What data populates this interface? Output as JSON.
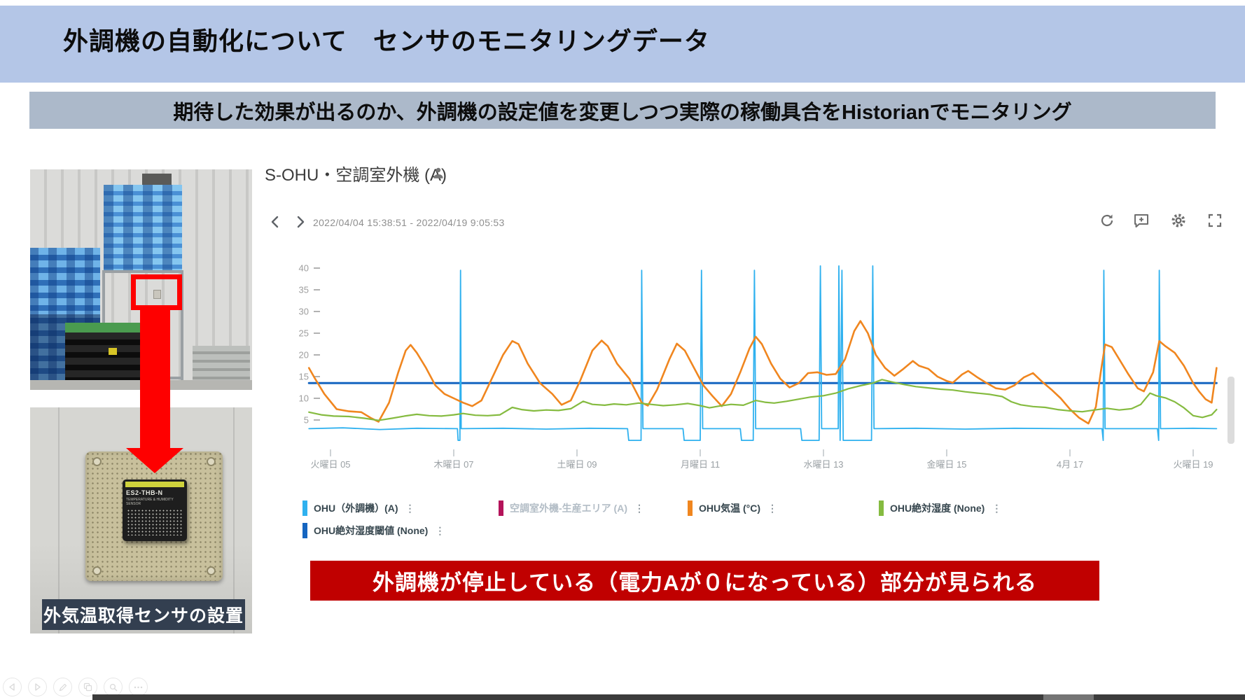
{
  "slide": {
    "title": "外調機の自動化について　センサのモニタリングデータ",
    "subtitle": "期待した効果が出るのか、外調機の設定値を変更しつつ実際の稼働具合をHistorianでモニタリング",
    "callout": "外調機が停止している（電力Aが０になっている）部分が見られる",
    "photo_caption": "外気温取得センサの設置",
    "sensor_model": "ES2-THB-N",
    "sensor_sub": "TEMPERATURE & HUMIDITY SENSOR"
  },
  "trend": {
    "title": "S-OHU・空調室外機 (A)",
    "date_range": "2022/04/04 15:38:51 - 2022/04/19 9:05:53",
    "legend_menu_glyph": "⋮"
  },
  "chart_data": {
    "type": "line",
    "title": "S-OHU・空調室外機 (A)",
    "x_axis": {
      "unit": "date (April 2022)",
      "range_days": [
        4.65,
        19.38
      ],
      "ticks": [
        {
          "day": 5,
          "label": "火曜日 05"
        },
        {
          "day": 7,
          "label": "木曜日 07"
        },
        {
          "day": 9,
          "label": "土曜日 09"
        },
        {
          "day": 11,
          "label": "月曜日 11"
        },
        {
          "day": 13,
          "label": "水曜日 13"
        },
        {
          "day": 15,
          "label": "金曜日 15"
        },
        {
          "day": 17,
          "label": "4月 17"
        },
        {
          "day": 19,
          "label": "火曜日 19"
        }
      ]
    },
    "y_axis": {
      "ticks": [
        5,
        10,
        15,
        20,
        25,
        30,
        35,
        40
      ],
      "lim": [
        0,
        43
      ]
    },
    "grid": false,
    "legend_position": "bottom",
    "series": [
      {
        "name": "OHU（外調機）(A)",
        "unit": "A",
        "color": "#2fb1ef",
        "visible": true,
        "points": [
          [
            4.65,
            3
          ],
          [
            5.2,
            3.2
          ],
          [
            5.8,
            2.8
          ],
          [
            6.4,
            3.1
          ],
          [
            7.06,
            3
          ],
          [
            7.07,
            0.3
          ],
          [
            7.1,
            0.3
          ],
          [
            7.11,
            39.5
          ],
          [
            7.12,
            3
          ],
          [
            7.8,
            3.1
          ],
          [
            8.5,
            2.9
          ],
          [
            9.2,
            3.1
          ],
          [
            9.82,
            3
          ],
          [
            9.84,
            0.3
          ],
          [
            10.04,
            0.3
          ],
          [
            10.05,
            39.5
          ],
          [
            10.07,
            3
          ],
          [
            10.72,
            3
          ],
          [
            10.74,
            0.3
          ],
          [
            11.0,
            0.3
          ],
          [
            11.02,
            39.5
          ],
          [
            11.04,
            3
          ],
          [
            11.65,
            3
          ],
          [
            11.67,
            0.3
          ],
          [
            11.86,
            0.3
          ],
          [
            11.88,
            39.5
          ],
          [
            11.9,
            3
          ],
          [
            12.63,
            3
          ],
          [
            12.65,
            0.3
          ],
          [
            12.93,
            0.3
          ],
          [
            12.95,
            40.5
          ],
          [
            12.97,
            3
          ],
          [
            13.24,
            3
          ],
          [
            13.25,
            40.5
          ],
          [
            13.27,
            0.3
          ],
          [
            13.3,
            39.5
          ],
          [
            13.32,
            0.3
          ],
          [
            13.78,
            0.3
          ],
          [
            13.8,
            40.5
          ],
          [
            13.82,
            3
          ],
          [
            14.5,
            3.1
          ],
          [
            15.3,
            2.9
          ],
          [
            16.1,
            3.1
          ],
          [
            16.9,
            3
          ],
          [
            17.52,
            3
          ],
          [
            17.54,
            0.3
          ],
          [
            17.55,
            39.5
          ],
          [
            17.57,
            3
          ],
          [
            18.1,
            3
          ],
          [
            18.42,
            3
          ],
          [
            18.44,
            0.3
          ],
          [
            18.45,
            39.5
          ],
          [
            18.47,
            3
          ],
          [
            19.0,
            3.1
          ],
          [
            19.38,
            3
          ]
        ]
      },
      {
        "name": "空調室外機-生産エリア (A)",
        "unit": "A",
        "color": "#b4135a",
        "visible": false,
        "points": []
      },
      {
        "name": "OHU気温 (°C)",
        "unit": "°C",
        "color": "#f0861f",
        "visible": true,
        "points": [
          [
            4.65,
            17
          ],
          [
            4.75,
            14.5
          ],
          [
            4.9,
            11
          ],
          [
            5.1,
            7.5
          ],
          [
            5.3,
            7
          ],
          [
            5.5,
            6.8
          ],
          [
            5.65,
            5.5
          ],
          [
            5.78,
            4.6
          ],
          [
            5.95,
            9
          ],
          [
            6.1,
            16
          ],
          [
            6.22,
            21
          ],
          [
            6.3,
            22.3
          ],
          [
            6.4,
            20.5
          ],
          [
            6.55,
            17
          ],
          [
            6.7,
            13
          ],
          [
            6.85,
            11
          ],
          [
            7.0,
            10
          ],
          [
            7.15,
            9
          ],
          [
            7.3,
            8.2
          ],
          [
            7.45,
            9.5
          ],
          [
            7.6,
            14
          ],
          [
            7.8,
            20
          ],
          [
            7.95,
            23.2
          ],
          [
            8.05,
            22.5
          ],
          [
            8.2,
            18
          ],
          [
            8.4,
            13.5
          ],
          [
            8.6,
            11
          ],
          [
            8.75,
            8.5
          ],
          [
            8.9,
            9.5
          ],
          [
            9.05,
            14
          ],
          [
            9.25,
            21
          ],
          [
            9.4,
            23.3
          ],
          [
            9.5,
            22
          ],
          [
            9.65,
            18
          ],
          [
            9.85,
            14.5
          ],
          [
            10.05,
            9
          ],
          [
            10.15,
            8.3
          ],
          [
            10.3,
            12
          ],
          [
            10.5,
            19
          ],
          [
            10.62,
            22.6
          ],
          [
            10.75,
            21
          ],
          [
            10.9,
            17
          ],
          [
            11.05,
            13
          ],
          [
            11.2,
            10.5
          ],
          [
            11.35,
            8.2
          ],
          [
            11.5,
            11
          ],
          [
            11.65,
            16
          ],
          [
            11.8,
            21.5
          ],
          [
            11.9,
            24.2
          ],
          [
            12.0,
            22.5
          ],
          [
            12.15,
            18
          ],
          [
            12.3,
            14.5
          ],
          [
            12.45,
            12.5
          ],
          [
            12.6,
            13.5
          ],
          [
            12.75,
            15.8
          ],
          [
            12.9,
            16
          ],
          [
            13.05,
            15.4
          ],
          [
            13.2,
            15.6
          ],
          [
            13.35,
            19
          ],
          [
            13.5,
            25.5
          ],
          [
            13.6,
            27.8
          ],
          [
            13.72,
            25
          ],
          [
            13.85,
            20
          ],
          [
            14.0,
            17
          ],
          [
            14.15,
            15.2
          ],
          [
            14.3,
            16.8
          ],
          [
            14.45,
            18.6
          ],
          [
            14.55,
            17.5
          ],
          [
            14.7,
            16.8
          ],
          [
            14.85,
            15
          ],
          [
            15.0,
            14
          ],
          [
            15.1,
            13.6
          ],
          [
            15.25,
            15.5
          ],
          [
            15.35,
            16.3
          ],
          [
            15.5,
            14.8
          ],
          [
            15.65,
            13.5
          ],
          [
            15.8,
            12.3
          ],
          [
            15.95,
            12
          ],
          [
            16.1,
            13
          ],
          [
            16.25,
            14.8
          ],
          [
            16.4,
            15.8
          ],
          [
            16.55,
            13.8
          ],
          [
            16.7,
            12
          ],
          [
            16.85,
            10
          ],
          [
            17.0,
            7.5
          ],
          [
            17.15,
            5.5
          ],
          [
            17.3,
            4.2
          ],
          [
            17.42,
            8
          ],
          [
            17.5,
            16
          ],
          [
            17.57,
            22.4
          ],
          [
            17.68,
            21.8
          ],
          [
            17.8,
            19
          ],
          [
            17.95,
            15.5
          ],
          [
            18.1,
            12.3
          ],
          [
            18.2,
            11.6
          ],
          [
            18.35,
            16
          ],
          [
            18.45,
            23.2
          ],
          [
            18.55,
            22
          ],
          [
            18.7,
            20.5
          ],
          [
            18.85,
            17.5
          ],
          [
            19.0,
            13.5
          ],
          [
            19.1,
            11.5
          ],
          [
            19.2,
            9.8
          ],
          [
            19.3,
            9
          ],
          [
            19.38,
            17
          ]
        ]
      },
      {
        "name": "OHU絶対湿度 (None)",
        "unit": "None",
        "color": "#85bb40",
        "visible": true,
        "points": [
          [
            4.65,
            6.8
          ],
          [
            4.85,
            6.2
          ],
          [
            5.05,
            5.9
          ],
          [
            5.3,
            5.8
          ],
          [
            5.55,
            5.4
          ],
          [
            5.78,
            4.9
          ],
          [
            6.0,
            5.4
          ],
          [
            6.2,
            5.9
          ],
          [
            6.4,
            6.3
          ],
          [
            6.6,
            6.0
          ],
          [
            6.8,
            5.9
          ],
          [
            7.0,
            6.2
          ],
          [
            7.15,
            6.5
          ],
          [
            7.35,
            6.1
          ],
          [
            7.55,
            6.0
          ],
          [
            7.75,
            6.2
          ],
          [
            7.95,
            7.9
          ],
          [
            8.1,
            7.4
          ],
          [
            8.3,
            7.1
          ],
          [
            8.5,
            7.3
          ],
          [
            8.7,
            7.2
          ],
          [
            8.9,
            7.6
          ],
          [
            9.1,
            9.3
          ],
          [
            9.25,
            8.6
          ],
          [
            9.45,
            8.4
          ],
          [
            9.6,
            8.7
          ],
          [
            9.8,
            8.5
          ],
          [
            10.0,
            8.9
          ],
          [
            10.2,
            8.6
          ],
          [
            10.4,
            8.3
          ],
          [
            10.6,
            8.5
          ],
          [
            10.8,
            8.8
          ],
          [
            11.0,
            8.3
          ],
          [
            11.15,
            7.8
          ],
          [
            11.3,
            8.2
          ],
          [
            11.5,
            8.6
          ],
          [
            11.7,
            8.4
          ],
          [
            11.9,
            9.5
          ],
          [
            12.05,
            9.1
          ],
          [
            12.2,
            8.9
          ],
          [
            12.4,
            9.3
          ],
          [
            12.6,
            9.8
          ],
          [
            12.8,
            10.3
          ],
          [
            13.0,
            10.6
          ],
          [
            13.2,
            11.2
          ],
          [
            13.4,
            12.2
          ],
          [
            13.6,
            12.9
          ],
          [
            13.8,
            13.5
          ],
          [
            13.95,
            14.3
          ],
          [
            14.1,
            13.8
          ],
          [
            14.3,
            13.2
          ],
          [
            14.5,
            12.7
          ],
          [
            14.7,
            12.4
          ],
          [
            14.9,
            12.1
          ],
          [
            15.1,
            11.9
          ],
          [
            15.3,
            11.5
          ],
          [
            15.5,
            11.2
          ],
          [
            15.7,
            10.9
          ],
          [
            15.9,
            10.4
          ],
          [
            16.05,
            9.2
          ],
          [
            16.2,
            8.5
          ],
          [
            16.4,
            8.1
          ],
          [
            16.6,
            7.9
          ],
          [
            16.8,
            7.4
          ],
          [
            17.0,
            7.1
          ],
          [
            17.2,
            6.9
          ],
          [
            17.4,
            7.3
          ],
          [
            17.6,
            7.7
          ],
          [
            17.8,
            7.3
          ],
          [
            18.0,
            7.6
          ],
          [
            18.15,
            8.6
          ],
          [
            18.3,
            11.2
          ],
          [
            18.4,
            10.6
          ],
          [
            18.55,
            10.1
          ],
          [
            18.7,
            9.2
          ],
          [
            18.85,
            7.8
          ],
          [
            19.0,
            6.0
          ],
          [
            19.15,
            5.6
          ],
          [
            19.3,
            6.2
          ],
          [
            19.38,
            7.4
          ]
        ]
      },
      {
        "name": "OHU絶対湿度閾値 (None)",
        "unit": "None",
        "color": "#1565c0",
        "visible": true,
        "points": [
          [
            4.65,
            13.5
          ],
          [
            19.38,
            13.5
          ]
        ]
      }
    ],
    "hidden_series_note": "空調室外機-生産エリア (A) はレジェンドでグレーアウト（非表示）"
  },
  "player_controls": [
    "previous-slide",
    "next-slide",
    "pen",
    "slide-navigator",
    "zoom",
    "more"
  ]
}
